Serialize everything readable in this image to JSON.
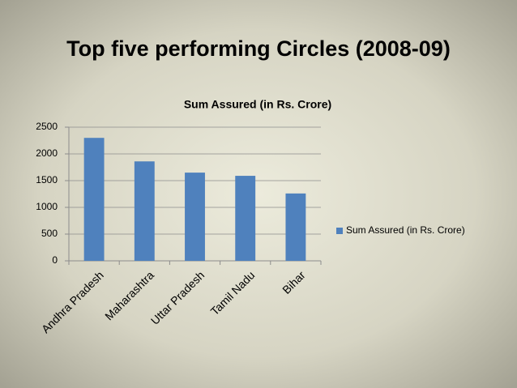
{
  "slide_title": "Top five performing Circles (2008-09)",
  "chart_data": {
    "type": "bar",
    "title": "Sum Assured (in Rs. Crore)",
    "categories": [
      "Andhra Pradesh",
      "Maharashtra",
      "Uttar Pradesh",
      "Tamil Nadu",
      "Bihar"
    ],
    "series": [
      {
        "name": "Sum Assured (in Rs. Crore)",
        "color": "#4f81bd",
        "values": [
          2300,
          1860,
          1650,
          1590,
          1260
        ]
      }
    ],
    "ylim": [
      0,
      2500
    ],
    "yticks": [
      0,
      500,
      1000,
      1500,
      2000,
      2500
    ],
    "grid": true,
    "legend": "right"
  }
}
